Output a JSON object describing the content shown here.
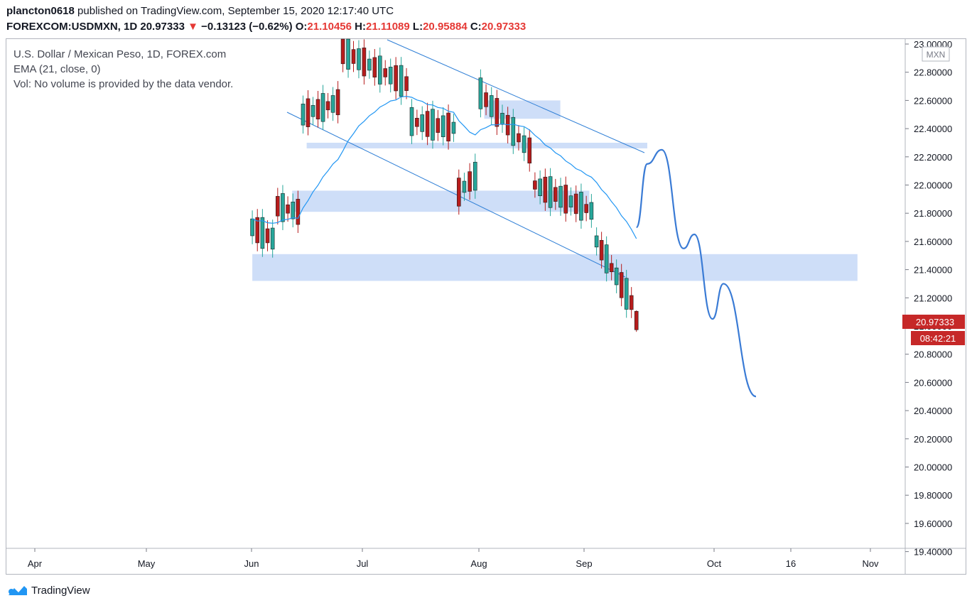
{
  "header": {
    "user": "plancton0618",
    "published": "published on TradingView.com, September 15, 2020 12:17:40 UTC",
    "symbol": "FOREXCOM:USDMXN, 1D",
    "last": "20.97333",
    "change_arrow": "▼",
    "change": "−0.13123 (−0.62%)",
    "o_label": "O:",
    "o_value": "21.10456",
    "h_label": "H:",
    "h_value": "21.11089",
    "l_label": "L:",
    "l_value": "20.95884",
    "c_label": "C:",
    "c_value": "20.97333"
  },
  "legend": {
    "title": "U.S. Dollar / Mexican Peso, 1D, FOREX.com",
    "ema": "EMA (21, close, 0)",
    "vol": "Vol: No volume is provided by the data vendor."
  },
  "footer": {
    "brand": "TradingView"
  },
  "chart_data": {
    "type": "candlestick",
    "currency_badge": "MXN",
    "price_label": "20.97333",
    "countdown_label": "08:42:21",
    "y_ticks": [
      "23.00000",
      "22.80000",
      "22.60000",
      "22.40000",
      "22.20000",
      "22.00000",
      "21.80000",
      "21.60000",
      "21.40000",
      "21.20000",
      "21.00000",
      "20.80000",
      "20.60000",
      "20.40000",
      "20.20000",
      "20.00000",
      "19.80000",
      "19.60000",
      "19.40000"
    ],
    "x_ticks": [
      "Apr",
      "May",
      "Jun",
      "Jul",
      "Aug",
      "Sep",
      "Oct",
      "16",
      "Nov"
    ],
    "colors": {
      "up": "#26a69a",
      "down": "#b71c1c",
      "ema": "#2196f3",
      "zone": "#c5d8f7",
      "projection": "#3a7bd5",
      "price_tag": "#c62828"
    },
    "ohlc_sample": [
      {
        "date": "2020-06-01",
        "o": 21.95,
        "h": 22.05,
        "l": 21.55,
        "c": 21.7
      },
      {
        "date": "2020-06-08",
        "o": 21.6,
        "h": 21.95,
        "l": 21.45,
        "c": 21.85
      },
      {
        "date": "2020-06-15",
        "o": 21.8,
        "h": 22.75,
        "l": 21.75,
        "c": 22.5
      },
      {
        "date": "2020-06-26",
        "o": 22.6,
        "h": 23.0,
        "l": 22.4,
        "c": 22.95
      },
      {
        "date": "2020-07-15",
        "o": 22.7,
        "h": 22.85,
        "l": 22.3,
        "c": 22.45
      },
      {
        "date": "2020-07-28",
        "o": 22.4,
        "h": 22.55,
        "l": 21.88,
        "c": 21.95
      },
      {
        "date": "2020-08-03",
        "o": 22.1,
        "h": 22.9,
        "l": 22.05,
        "c": 22.65
      },
      {
        "date": "2020-08-18",
        "o": 22.2,
        "h": 22.35,
        "l": 21.95,
        "c": 22.0
      },
      {
        "date": "2020-09-04",
        "o": 21.8,
        "h": 21.9,
        "l": 21.55,
        "c": 21.6
      },
      {
        "date": "2020-09-15",
        "o": 21.10456,
        "h": 21.11089,
        "l": 20.95884,
        "c": 20.97333
      }
    ],
    "zones": [
      {
        "from_date": "2020-08-04",
        "to_date": "2020-08-25",
        "low": 22.47,
        "high": 22.6
      },
      {
        "from_date": "2020-06-16",
        "to_date": "2020-09-18",
        "low": 22.26,
        "high": 22.3
      },
      {
        "from_date": "2020-06-12",
        "to_date": "2020-09-02",
        "low": 21.81,
        "high": 21.96
      },
      {
        "from_date": "2020-06-01",
        "to_date": "2020-11-15",
        "low": 21.32,
        "high": 21.51
      }
    ],
    "projection": [
      {
        "date": "2020-09-15",
        "value": 21.7
      },
      {
        "date": "2020-09-18",
        "value": 22.15
      },
      {
        "date": "2020-09-22",
        "value": 22.25
      },
      {
        "date": "2020-09-28",
        "value": 21.55
      },
      {
        "date": "2020-10-01",
        "value": 21.65
      },
      {
        "date": "2020-10-06",
        "value": 21.05
      },
      {
        "date": "2020-10-09",
        "value": 21.3
      },
      {
        "date": "2020-10-18",
        "value": 20.5
      }
    ]
  }
}
